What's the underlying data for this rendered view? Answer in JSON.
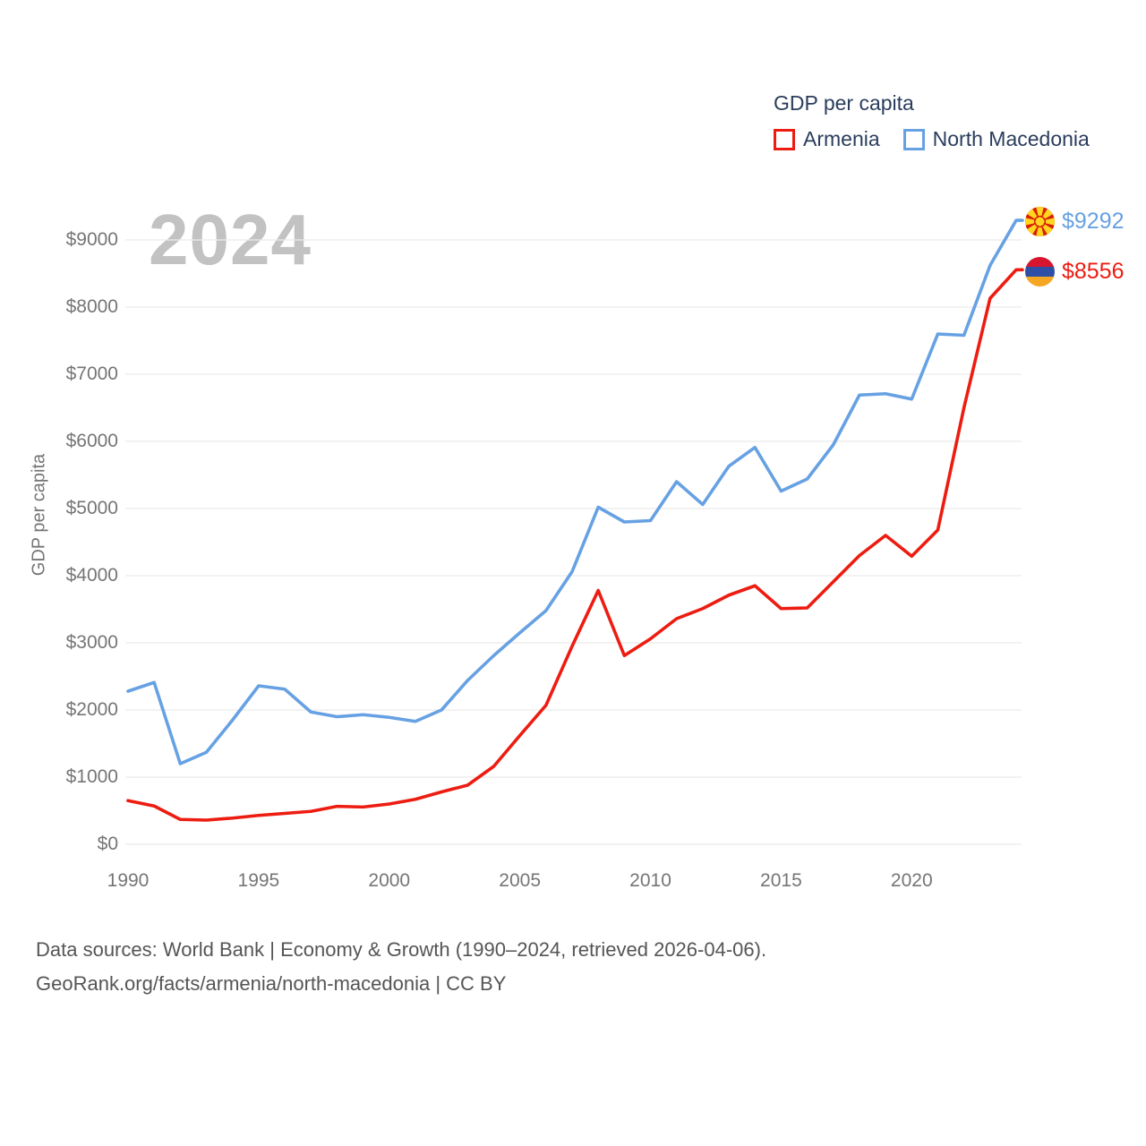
{
  "legend": {
    "title": "GDP per capita",
    "items": [
      {
        "label": "Armenia",
        "color": "#ed1c11"
      },
      {
        "label": "North Macedonia",
        "color": "#66a1e3"
      }
    ]
  },
  "watermark": "2024",
  "y_axis": {
    "title": "GDP per capita",
    "tick_prefix": "$",
    "ticks": [
      0,
      1000,
      2000,
      3000,
      4000,
      5000,
      6000,
      7000,
      8000,
      9000
    ]
  },
  "x_axis": {
    "ticks": [
      1990,
      1995,
      2000,
      2005,
      2010,
      2015,
      2020
    ]
  },
  "end_labels": [
    {
      "series": "North Macedonia",
      "value_label": "$9292",
      "flag": "north-macedonia-flag",
      "color": "#66a1e3"
    },
    {
      "series": "Armenia",
      "value_label": "$8556",
      "flag": "armenia-flag",
      "color": "#ed1c11"
    }
  ],
  "footer": {
    "line1": "Data sources: World Bank | Economy & Growth (1990–2024, retrieved 2026-04-06).",
    "line2": "GeoRank.org/facts/armenia/north-macedonia | CC BY"
  },
  "chart_data": {
    "type": "line",
    "title": "GDP per capita",
    "xlabel": "",
    "ylabel": "GDP per capita",
    "ylim": [
      0,
      9500
    ],
    "xlim": [
      1990,
      2024
    ],
    "grid": "horizontal",
    "legend_position": "top-right",
    "x": [
      1990,
      1991,
      1992,
      1993,
      1994,
      1995,
      1996,
      1997,
      1998,
      1999,
      2000,
      2001,
      2002,
      2003,
      2004,
      2005,
      2006,
      2007,
      2008,
      2009,
      2010,
      2011,
      2012,
      2013,
      2014,
      2015,
      2016,
      2017,
      2018,
      2019,
      2020,
      2021,
      2022,
      2023,
      2024
    ],
    "series": [
      {
        "name": "Armenia",
        "color": "#ed1c11",
        "final_value": 8556,
        "values": [
          650,
          570,
          370,
          360,
          390,
          430,
          460,
          490,
          565,
          555,
          600,
          670,
          780,
          880,
          1160,
          1620,
          2070,
          2950,
          3780,
          2810,
          3060,
          3360,
          3510,
          3710,
          3850,
          3510,
          3520,
          3910,
          4300,
          4600,
          4290,
          4680,
          6500,
          8130,
          8556
        ]
      },
      {
        "name": "North Macedonia",
        "color": "#66a1e3",
        "final_value": 9292,
        "values": [
          2280,
          2410,
          1200,
          1370,
          1850,
          2360,
          2310,
          1970,
          1900,
          1930,
          1890,
          1830,
          2000,
          2440,
          2810,
          3150,
          3480,
          4060,
          5020,
          4800,
          4820,
          5400,
          5060,
          5630,
          5910,
          5260,
          5440,
          5950,
          6690,
          6710,
          6630,
          7600,
          7580,
          8620,
          9292
        ]
      }
    ]
  }
}
